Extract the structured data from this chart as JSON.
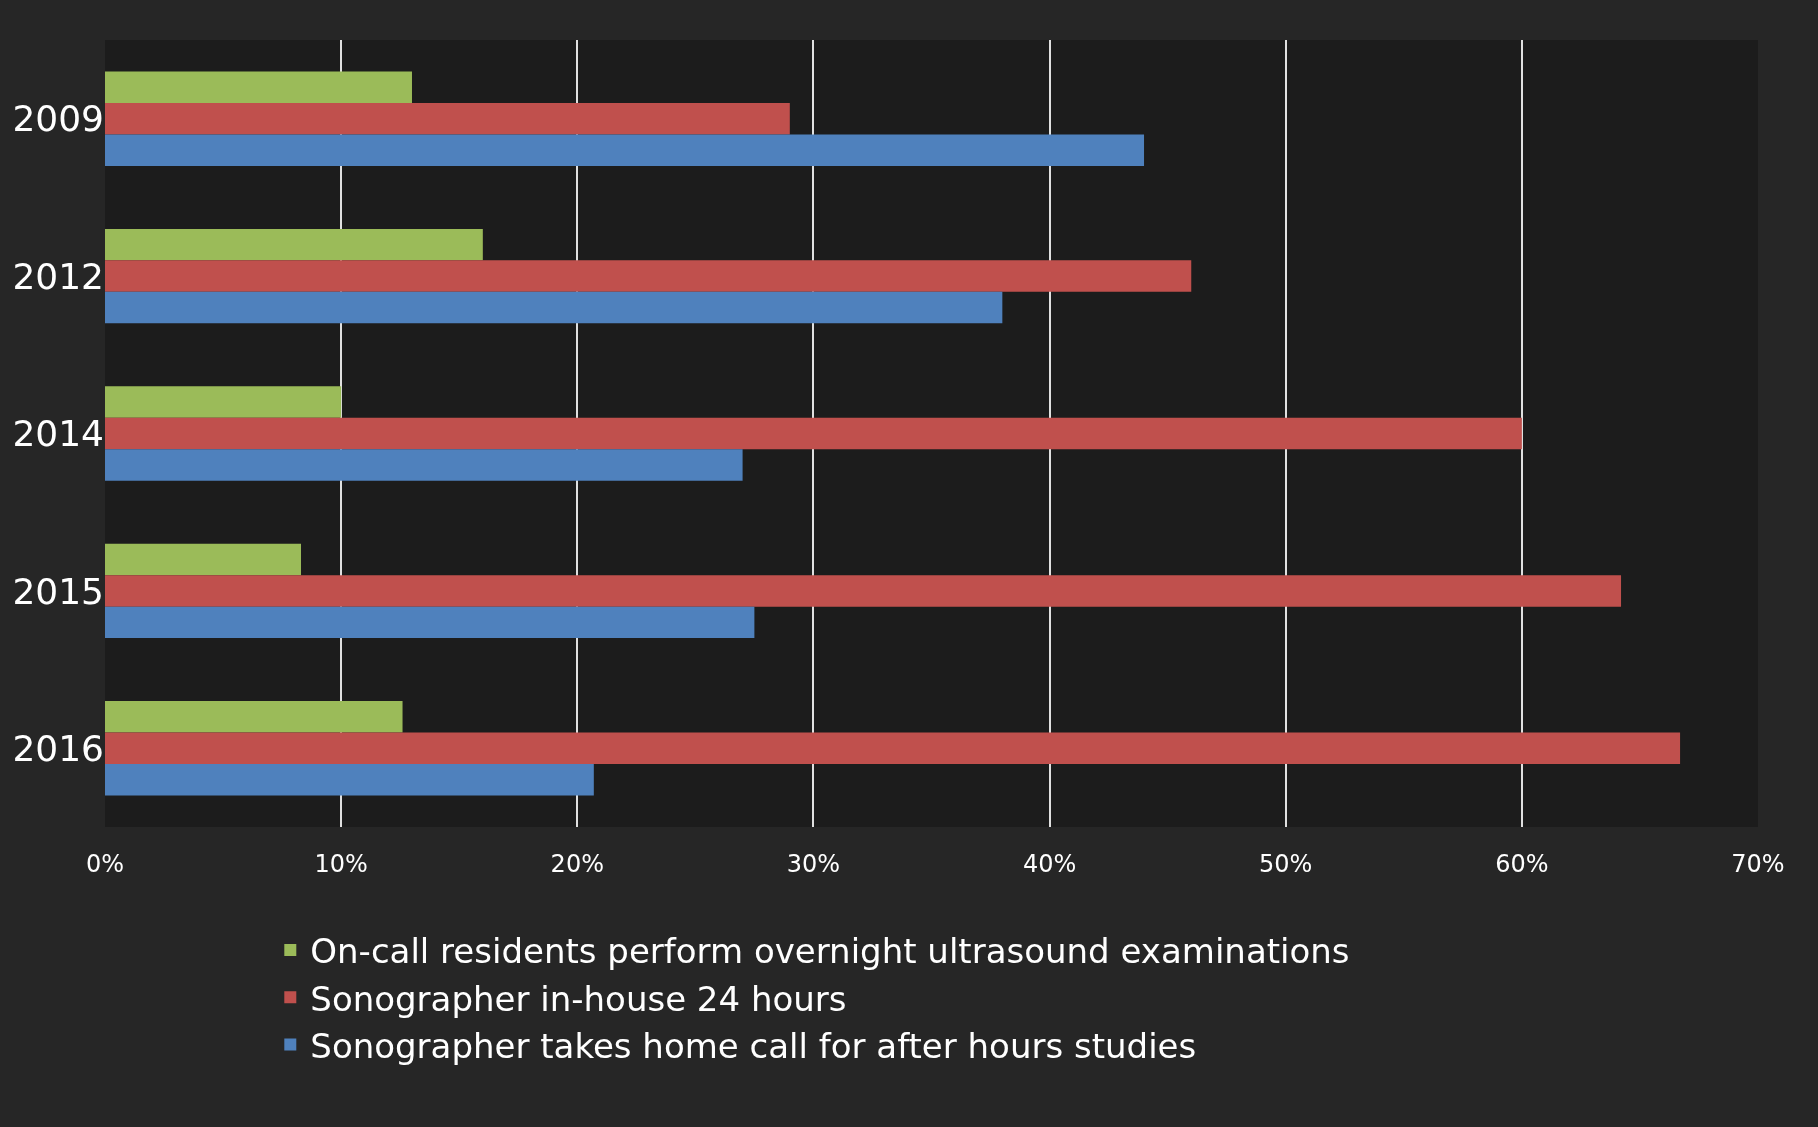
{
  "chart_data": {
    "type": "bar",
    "orientation": "horizontal",
    "categories": [
      "2009",
      "2012",
      "2014",
      "2015",
      "2016"
    ],
    "series": [
      {
        "name": "On-call residents perform overnight ultrasound examinations",
        "color": "#9bbb59",
        "values": [
          13.0,
          16.0,
          10.0,
          8.3,
          12.6
        ]
      },
      {
        "name": "Sonographer in-house 24 hours",
        "color": "#c0504d",
        "values": [
          29.0,
          46.0,
          60.0,
          64.2,
          66.7
        ]
      },
      {
        "name": "Sonographer takes home call for after hours studies",
        "color": "#4f81bd",
        "values": [
          44.0,
          38.0,
          27.0,
          27.5,
          20.7
        ]
      }
    ],
    "xlim": [
      0,
      70
    ],
    "xticks": [
      {
        "value": 0,
        "label": "0%"
      },
      {
        "value": 10,
        "label": "10%"
      },
      {
        "value": 20,
        "label": "20%"
      },
      {
        "value": 30,
        "label": "30%"
      },
      {
        "value": 40,
        "label": "40%"
      },
      {
        "value": 50,
        "label": "50%"
      },
      {
        "value": 60,
        "label": "60%"
      },
      {
        "value": 70,
        "label": "70%"
      }
    ],
    "grid": "x",
    "legend": "bottom"
  }
}
